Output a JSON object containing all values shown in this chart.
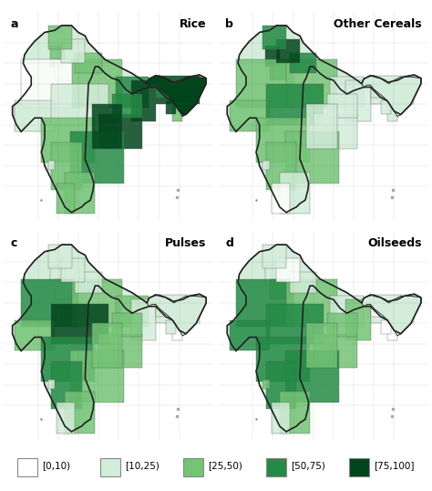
{
  "panels": [
    {
      "label": "a",
      "title": "Rice"
    },
    {
      "label": "b",
      "title": "Other Cereals"
    },
    {
      "label": "c",
      "title": "Pulses"
    },
    {
      "label": "d",
      "title": "Oilseeds"
    }
  ],
  "legend_labels": [
    "[0,10)",
    "[10,25)",
    "[25,50)",
    "[50,75)",
    "[75,100]"
  ],
  "legend_colors": [
    "#ffffff",
    "#d4edda",
    "#74c476",
    "#238b45",
    "#00441b"
  ],
  "legend_edge_color": "#888888",
  "figure_bg": "#ffffff",
  "title_fontsize": 9,
  "label_fontsize": 9,
  "legend_fontsize": 7.5
}
